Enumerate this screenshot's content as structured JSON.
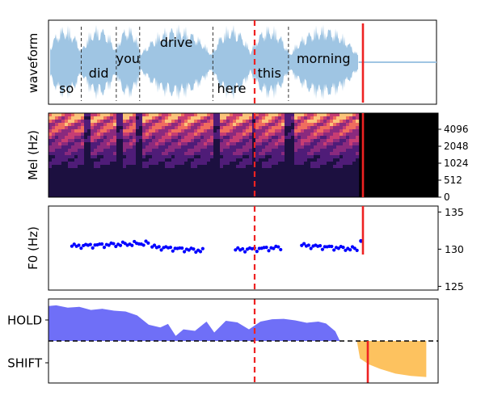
{
  "chart_data": [
    {
      "type": "area",
      "panel": "waveform",
      "ylabel": "waveform",
      "words": [
        {
          "text": "so",
          "start": 0.0,
          "end": 0.42
        },
        {
          "text": "did",
          "start": 0.42,
          "end": 0.87
        },
        {
          "text": "you",
          "start": 0.87,
          "end": 1.17
        },
        {
          "text": "drive",
          "start": 1.17,
          "end": 2.11
        },
        {
          "text": "here",
          "start": 2.11,
          "end": 2.59
        },
        {
          "text": "this",
          "start": 2.59,
          "end": 3.08
        },
        {
          "text": "morning",
          "start": 3.08,
          "end": 3.98
        }
      ],
      "speech_end": 3.98,
      "total_duration": 4.98,
      "dashed_red_marker": 2.59,
      "solid_red_marker": 3.98,
      "waveform_color": "#9fc5e3"
    },
    {
      "type": "heatmap",
      "panel": "mel spectrogram",
      "ylabel": "Mel (Hz)",
      "y_ticks": [
        "4096",
        "2048",
        "1024",
        "512",
        "0"
      ],
      "colormap": "magma",
      "dashed_red_marker": 2.59,
      "solid_red_marker": 3.98
    },
    {
      "type": "scatter",
      "panel": "pitch",
      "ylabel": "F0 (Hz)",
      "ylim": [
        124.5,
        135.8
      ],
      "y_ticks": [
        125,
        130,
        135
      ],
      "segments": [
        {
          "x_start": 0.3,
          "x_end": 1.28,
          "y_start": 130.4,
          "y_end": 130.8
        },
        {
          "x_start": 1.33,
          "x_end": 1.98,
          "y_start": 130.3,
          "y_end": 129.8
        },
        {
          "x_start": 2.4,
          "x_end": 2.98,
          "y_start": 129.9,
          "y_end": 130.2
        },
        {
          "x_start": 3.25,
          "x_end": 3.96,
          "y_start": 130.5,
          "y_end": 130.0
        }
      ],
      "final_point": {
        "x": 3.98,
        "y": 131.1
      },
      "point_color": "#0000ff",
      "dashed_red_marker": 2.59,
      "solid_red_marker": 3.98
    },
    {
      "type": "area",
      "panel": "turn-taking",
      "y_ticks": [
        "HOLD",
        "SHIFT"
      ],
      "hold_color": "#6f6ff7",
      "shift_color": "#fdc25f",
      "hold": [
        {
          "x": 0.0,
          "y": 0.9
        },
        {
          "x": 0.1,
          "y": 0.92
        },
        {
          "x": 0.25,
          "y": 0.86
        },
        {
          "x": 0.4,
          "y": 0.88
        },
        {
          "x": 0.55,
          "y": 0.8
        },
        {
          "x": 0.7,
          "y": 0.83
        },
        {
          "x": 0.85,
          "y": 0.78
        },
        {
          "x": 1.0,
          "y": 0.76
        },
        {
          "x": 1.15,
          "y": 0.66
        },
        {
          "x": 1.3,
          "y": 0.42
        },
        {
          "x": 1.45,
          "y": 0.35
        },
        {
          "x": 1.55,
          "y": 0.44
        },
        {
          "x": 1.65,
          "y": 0.13
        },
        {
          "x": 1.75,
          "y": 0.3
        },
        {
          "x": 1.9,
          "y": 0.26
        },
        {
          "x": 2.05,
          "y": 0.5
        },
        {
          "x": 2.15,
          "y": 0.22
        },
        {
          "x": 2.3,
          "y": 0.52
        },
        {
          "x": 2.45,
          "y": 0.48
        },
        {
          "x": 2.6,
          "y": 0.3
        },
        {
          "x": 2.75,
          "y": 0.5
        },
        {
          "x": 2.9,
          "y": 0.56
        },
        {
          "x": 3.05,
          "y": 0.57
        },
        {
          "x": 3.2,
          "y": 0.53
        },
        {
          "x": 3.35,
          "y": 0.47
        },
        {
          "x": 3.5,
          "y": 0.5
        },
        {
          "x": 3.6,
          "y": 0.45
        },
        {
          "x": 3.72,
          "y": 0.25
        },
        {
          "x": 3.78,
          "y": 0.0
        }
      ],
      "shift": [
        {
          "x": 4.0,
          "y": 0.0
        },
        {
          "x": 4.04,
          "y": -0.45
        },
        {
          "x": 4.15,
          "y": -0.6
        },
        {
          "x": 4.3,
          "y": -0.72
        },
        {
          "x": 4.5,
          "y": -0.84
        },
        {
          "x": 4.7,
          "y": -0.9
        },
        {
          "x": 4.9,
          "y": -0.93
        }
      ],
      "threshold_y": 0.0,
      "solid_red_marker": 4.04,
      "dashed_red_marker": 2.59
    }
  ]
}
